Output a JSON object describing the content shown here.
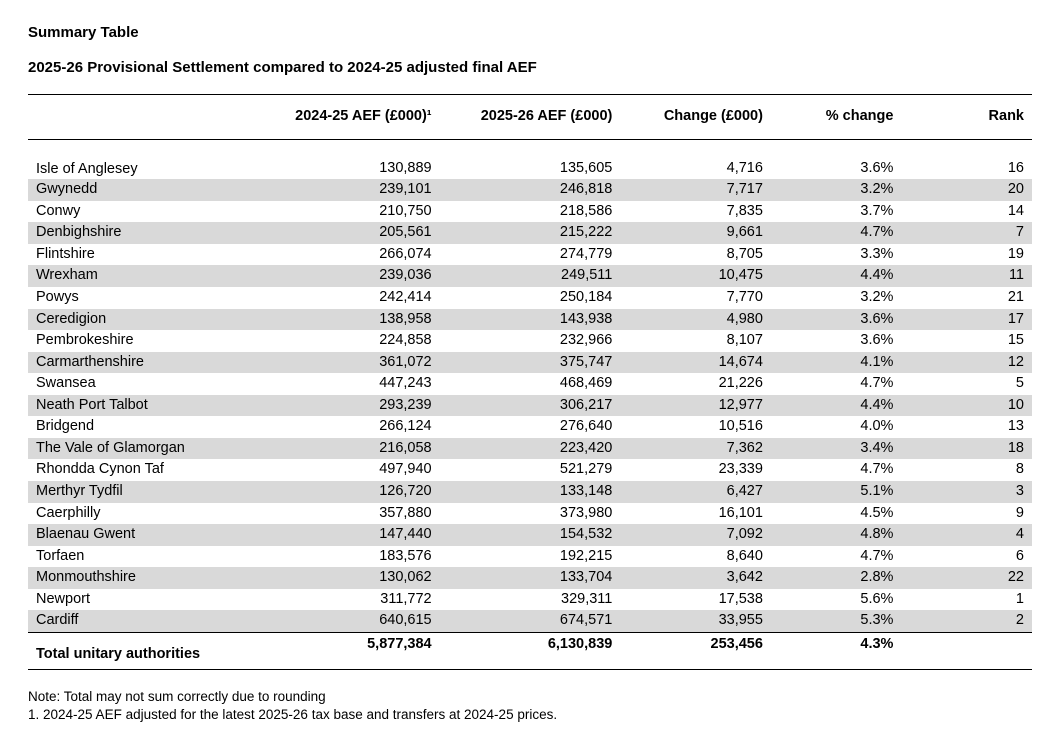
{
  "title1": "Summary Table",
  "title2": "2025-26 Provisional Settlement compared to 2024-25 adjusted final AEF",
  "columns": {
    "name": "",
    "aef2425": "2024-25 AEF (£000)¹",
    "aef2526": "2025-26 AEF (£000)",
    "change": "Change (£000)",
    "pct": "% change",
    "rank": "Rank"
  },
  "row_shading": {
    "shaded": "#d9d9d9",
    "unshaded": "#ffffff"
  },
  "rows": [
    {
      "name": "Isle of Anglesey",
      "aef2425": "130,889",
      "aef2526": "135,605",
      "change": "4,716",
      "pct": "3.6%",
      "rank": "16",
      "shaded": false
    },
    {
      "name": "Gwynedd",
      "aef2425": "239,101",
      "aef2526": "246,818",
      "change": "7,717",
      "pct": "3.2%",
      "rank": "20",
      "shaded": true
    },
    {
      "name": "Conwy",
      "aef2425": "210,750",
      "aef2526": "218,586",
      "change": "7,835",
      "pct": "3.7%",
      "rank": "14",
      "shaded": false
    },
    {
      "name": "Denbighshire",
      "aef2425": "205,561",
      "aef2526": "215,222",
      "change": "9,661",
      "pct": "4.7%",
      "rank": "7",
      "shaded": true
    },
    {
      "name": "Flintshire",
      "aef2425": "266,074",
      "aef2526": "274,779",
      "change": "8,705",
      "pct": "3.3%",
      "rank": "19",
      "shaded": false
    },
    {
      "name": "Wrexham",
      "aef2425": "239,036",
      "aef2526": "249,511",
      "change": "10,475",
      "pct": "4.4%",
      "rank": "11",
      "shaded": true
    },
    {
      "name": "Powys",
      "aef2425": "242,414",
      "aef2526": "250,184",
      "change": "7,770",
      "pct": "3.2%",
      "rank": "21",
      "shaded": false
    },
    {
      "name": "Ceredigion",
      "aef2425": "138,958",
      "aef2526": "143,938",
      "change": "4,980",
      "pct": "3.6%",
      "rank": "17",
      "shaded": true
    },
    {
      "name": "Pembrokeshire",
      "aef2425": "224,858",
      "aef2526": "232,966",
      "change": "8,107",
      "pct": "3.6%",
      "rank": "15",
      "shaded": false
    },
    {
      "name": "Carmarthenshire",
      "aef2425": "361,072",
      "aef2526": "375,747",
      "change": "14,674",
      "pct": "4.1%",
      "rank": "12",
      "shaded": true
    },
    {
      "name": "Swansea",
      "aef2425": "447,243",
      "aef2526": "468,469",
      "change": "21,226",
      "pct": "4.7%",
      "rank": "5",
      "shaded": false
    },
    {
      "name": "Neath Port Talbot",
      "aef2425": "293,239",
      "aef2526": "306,217",
      "change": "12,977",
      "pct": "4.4%",
      "rank": "10",
      "shaded": true
    },
    {
      "name": "Bridgend",
      "aef2425": "266,124",
      "aef2526": "276,640",
      "change": "10,516",
      "pct": "4.0%",
      "rank": "13",
      "shaded": false
    },
    {
      "name": "The Vale of Glamorgan",
      "aef2425": "216,058",
      "aef2526": "223,420",
      "change": "7,362",
      "pct": "3.4%",
      "rank": "18",
      "shaded": true
    },
    {
      "name": "Rhondda Cynon Taf",
      "aef2425": "497,940",
      "aef2526": "521,279",
      "change": "23,339",
      "pct": "4.7%",
      "rank": "8",
      "shaded": false
    },
    {
      "name": "Merthyr Tydfil",
      "aef2425": "126,720",
      "aef2526": "133,148",
      "change": "6,427",
      "pct": "5.1%",
      "rank": "3",
      "shaded": true
    },
    {
      "name": "Caerphilly",
      "aef2425": "357,880",
      "aef2526": "373,980",
      "change": "16,101",
      "pct": "4.5%",
      "rank": "9",
      "shaded": false
    },
    {
      "name": "Blaenau Gwent",
      "aef2425": "147,440",
      "aef2526": "154,532",
      "change": "7,092",
      "pct": "4.8%",
      "rank": "4",
      "shaded": true
    },
    {
      "name": "Torfaen",
      "aef2425": "183,576",
      "aef2526": "192,215",
      "change": "8,640",
      "pct": "4.7%",
      "rank": "6",
      "shaded": false
    },
    {
      "name": "Monmouthshire",
      "aef2425": "130,062",
      "aef2526": "133,704",
      "change": "3,642",
      "pct": "2.8%",
      "rank": "22",
      "shaded": true
    },
    {
      "name": "Newport",
      "aef2425": "311,772",
      "aef2526": "329,311",
      "change": "17,538",
      "pct": "5.6%",
      "rank": "1",
      "shaded": false
    },
    {
      "name": "Cardiff",
      "aef2425": "640,615",
      "aef2526": "674,571",
      "change": "33,955",
      "pct": "5.3%",
      "rank": "2",
      "shaded": true
    }
  ],
  "total": {
    "name": "Total unitary authorities",
    "aef2425": "5,877,384",
    "aef2526": "6,130,839",
    "change": "253,456",
    "pct": "4.3%",
    "rank": ""
  },
  "notes": {
    "line1": "Note: Total may not sum correctly due to rounding",
    "line2": "1.  2024-25 AEF adjusted for the latest 2025-26 tax base and transfers at 2024-25 prices."
  }
}
